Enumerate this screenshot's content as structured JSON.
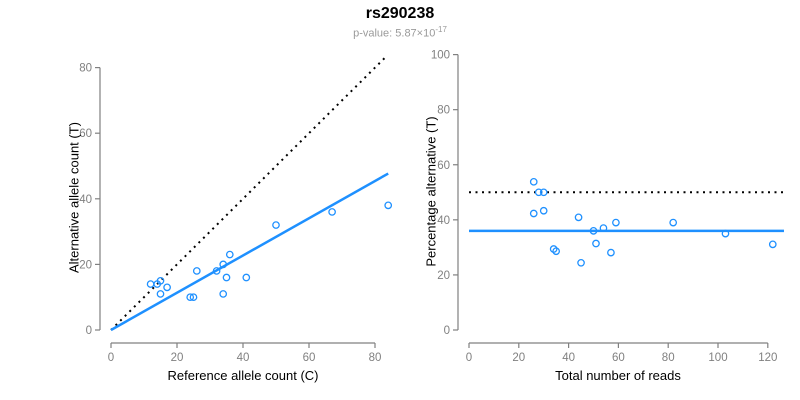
{
  "header": {
    "title": "rs290238",
    "pvalue_label": "p-value: 5.87×10",
    "pvalue_exponent": "-17"
  },
  "colors": {
    "point": "#1E90FF",
    "fit_line": "#1E90FF",
    "reference_line": "#000000",
    "axis": "#808080",
    "tick_label": "#808080",
    "axis_title": "#000000",
    "title": "#000000",
    "subtitle": "#9a9a9a"
  },
  "chart_data": [
    {
      "type": "scatter",
      "figure_title": "rs290238",
      "figure_subtitle": "p-value: 5.87×10^-17",
      "xlabel": "Reference allele count (C)",
      "ylabel": "Alternative allele count (T)",
      "xlim": [
        0,
        84
      ],
      "ylim": [
        0,
        84
      ],
      "xticks": [
        0,
        20,
        40,
        60,
        80
      ],
      "yticks": [
        0,
        20,
        40,
        60,
        80
      ],
      "grid": false,
      "legend": false,
      "points": [
        [
          12,
          14
        ],
        [
          14,
          14
        ],
        [
          15,
          15
        ],
        [
          17,
          13
        ],
        [
          15,
          11
        ],
        [
          26,
          18
        ],
        [
          24,
          10
        ],
        [
          25,
          10
        ],
        [
          32,
          18
        ],
        [
          36,
          23
        ],
        [
          34,
          20
        ],
        [
          35,
          16
        ],
        [
          41,
          16
        ],
        [
          34,
          11
        ],
        [
          50,
          32
        ],
        [
          67,
          36
        ],
        [
          84,
          38
        ]
      ],
      "lines": [
        {
          "name": "identity-line",
          "style": "dotted",
          "color": "#000000",
          "from": [
            0,
            0
          ],
          "to": [
            83.5,
            83.5
          ]
        },
        {
          "name": "fit-line",
          "style": "solid",
          "color": "#1E90FF",
          "slope": 0.567,
          "from": [
            0,
            0
          ],
          "to": [
            84,
            47.7
          ]
        }
      ]
    },
    {
      "type": "scatter",
      "xlabel": "Total number of reads",
      "ylabel": "Percentage alternative (T)",
      "xlim": [
        0,
        126
      ],
      "ylim": [
        0,
        100
      ],
      "xticks": [
        0,
        20,
        40,
        60,
        80,
        100,
        120
      ],
      "yticks": [
        0,
        20,
        40,
        60,
        80,
        100
      ],
      "grid": false,
      "legend": false,
      "points": [
        [
          26,
          53.8
        ],
        [
          28,
          50
        ],
        [
          30,
          50
        ],
        [
          30,
          43.3
        ],
        [
          26,
          42.3
        ],
        [
          44,
          40.9
        ],
        [
          34,
          29.4
        ],
        [
          35,
          28.6
        ],
        [
          50,
          36
        ],
        [
          54,
          37
        ],
        [
          59,
          39
        ],
        [
          51,
          31.4
        ],
        [
          57,
          28.1
        ],
        [
          45,
          24.4
        ],
        [
          82,
          39
        ],
        [
          103,
          35
        ],
        [
          122,
          31.1
        ]
      ],
      "lines": [
        {
          "name": "expected-50pct-line",
          "style": "dotted",
          "color": "#000000",
          "from": [
            0,
            50
          ],
          "to": [
            126.5,
            50
          ]
        },
        {
          "name": "mean-pct-line",
          "style": "solid",
          "color": "#1E90FF",
          "value": 36,
          "from": [
            0,
            36
          ],
          "to": [
            126.5,
            36
          ]
        }
      ]
    }
  ]
}
